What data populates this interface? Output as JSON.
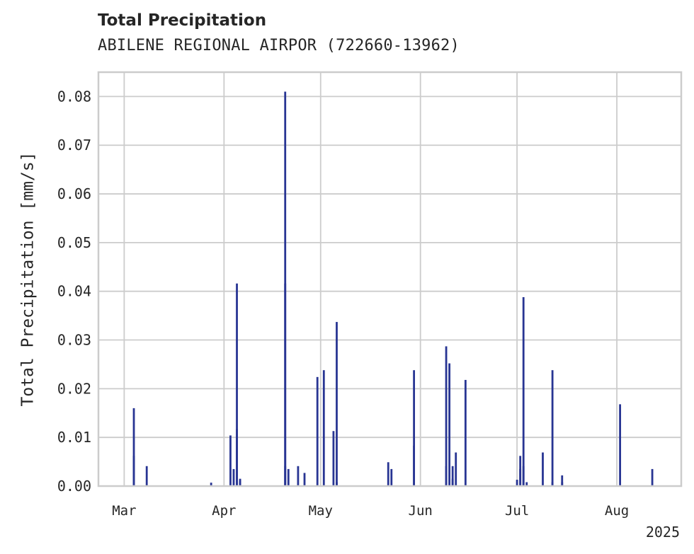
{
  "chart_data": {
    "type": "bar",
    "title": "Total Precipitation",
    "subtitle": "ABILENE REGIONAL AIRPOR (722660-13962)",
    "ylabel": "Total Precipitation [mm/s]",
    "xlabel": "",
    "year_label": "2025",
    "ylim": [
      0,
      0.085
    ],
    "yticks": [
      0.0,
      0.01,
      0.02,
      0.03,
      0.04,
      0.05,
      0.06,
      0.07,
      0.08
    ],
    "ytick_labels": [
      "0.00",
      "0.01",
      "0.02",
      "0.03",
      "0.04",
      "0.05",
      "0.06",
      "0.07",
      "0.08"
    ],
    "xlim": [
      "2025-02-21",
      "2025-08-21"
    ],
    "xticks": [
      "2025-03-01",
      "2025-04-01",
      "2025-05-01",
      "2025-06-01",
      "2025-07-01",
      "2025-08-01"
    ],
    "xtick_labels": [
      "Mar",
      "Apr",
      "May",
      "Jun",
      "Jul",
      "Aug"
    ],
    "grid": true,
    "bar_color": "#283593",
    "x": [
      "2025-03-04",
      "2025-03-04",
      "2025-03-08",
      "2025-03-28",
      "2025-04-03",
      "2025-04-04",
      "2025-04-05",
      "2025-04-05",
      "2025-04-06",
      "2025-04-06",
      "2025-04-06",
      "2025-04-20",
      "2025-04-20",
      "2025-04-20",
      "2025-04-21",
      "2025-04-24",
      "2025-04-26",
      "2025-04-30",
      "2025-05-02",
      "2025-05-05",
      "2025-05-06",
      "2025-05-06",
      "2025-05-22",
      "2025-05-23",
      "2025-05-30",
      "2025-05-30",
      "2025-06-09",
      "2025-06-09",
      "2025-06-10",
      "2025-06-11",
      "2025-06-11",
      "2025-06-12",
      "2025-06-15",
      "2025-07-01",
      "2025-07-02",
      "2025-07-02",
      "2025-07-03",
      "2025-07-03",
      "2025-07-04",
      "2025-07-09",
      "2025-07-12",
      "2025-07-12",
      "2025-07-15",
      "2025-07-15",
      "2025-08-02",
      "2025-08-12"
    ],
    "values": [
      0.016,
      0.0062,
      0.0041,
      0.0007,
      0.0104,
      0.0035,
      0.0416,
      0.0117,
      0.0015,
      0.0008,
      0.0012,
      0.0041,
      0.081,
      0.0416,
      0.0035,
      0.0041,
      0.0027,
      0.0224,
      0.0238,
      0.0113,
      0.0337,
      0.0008,
      0.0049,
      0.0035,
      0.0238,
      0.0083,
      0.0287,
      0.0041,
      0.0252,
      0.0041,
      0.0015,
      0.0069,
      0.0218,
      0.0013,
      0.0062,
      0.0035,
      0.0388,
      0.0041,
      0.0008,
      0.0069,
      0.0238,
      0.0008,
      0.0022,
      0.0008,
      0.0168,
      0.0035
    ]
  }
}
